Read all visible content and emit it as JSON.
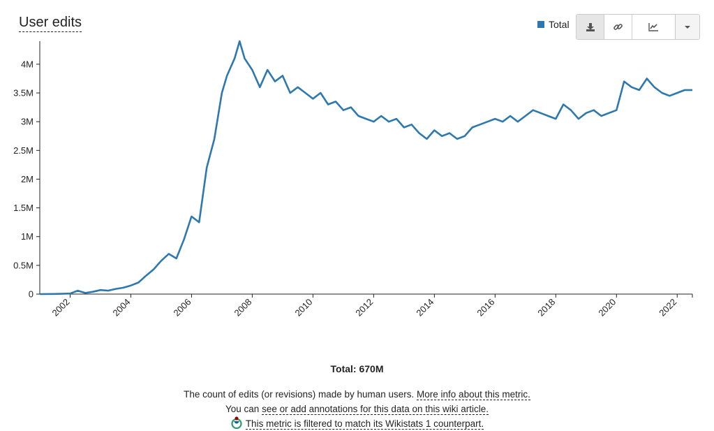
{
  "title": "User edits",
  "legend": {
    "label": "Total",
    "color": "#2E78B0"
  },
  "toolbar": {
    "download_icon": "download-icon",
    "link_icon": "link-icon",
    "chart_icon": "line-chart-icon",
    "menu_icon": "caret-down-icon"
  },
  "summary": {
    "total": "Total: 670M"
  },
  "description": {
    "line1_text": "The count of edits (or revisions) made by human users. ",
    "line1_link": "More info about this metric.",
    "line2_text": "You can ",
    "line2_link": "see or add annotations for this data on this wiki article.",
    "line3_link": "This metric is filtered to match its Wikistats 1 counterpart."
  },
  "chart_data": {
    "type": "line",
    "title": "User edits",
    "xlabel": "",
    "ylabel": "",
    "x_ticks": [
      "2002",
      "2004",
      "2006",
      "2008",
      "2010",
      "2012",
      "2014",
      "2016",
      "2018",
      "2020",
      "2022"
    ],
    "y_ticks": [
      "0",
      "0.5M",
      "1M",
      "1.5M",
      "2M",
      "2.5M",
      "3M",
      "3.5M",
      "4M"
    ],
    "ylim": [
      0,
      4400000
    ],
    "xlim": [
      "2001-01",
      "2022-07"
    ],
    "grid": false,
    "legend_position": "top-right",
    "series": [
      {
        "name": "Total",
        "color": "#2E78B0",
        "points": [
          [
            "2001-01",
            0
          ],
          [
            "2001-07",
            2000
          ],
          [
            "2002-01",
            10000
          ],
          [
            "2002-04",
            60000
          ],
          [
            "2002-07",
            20000
          ],
          [
            "2002-10",
            40000
          ],
          [
            "2003-01",
            70000
          ],
          [
            "2003-04",
            60000
          ],
          [
            "2003-07",
            90000
          ],
          [
            "2003-10",
            110000
          ],
          [
            "2004-01",
            150000
          ],
          [
            "2004-04",
            200000
          ],
          [
            "2004-07",
            320000
          ],
          [
            "2004-10",
            430000
          ],
          [
            "2005-01",
            580000
          ],
          [
            "2005-04",
            700000
          ],
          [
            "2005-07",
            620000
          ],
          [
            "2005-10",
            950000
          ],
          [
            "2006-01",
            1350000
          ],
          [
            "2006-04",
            1250000
          ],
          [
            "2006-07",
            2200000
          ],
          [
            "2006-10",
            2700000
          ],
          [
            "2007-01",
            3500000
          ],
          [
            "2007-03",
            3800000
          ],
          [
            "2007-06",
            4100000
          ],
          [
            "2007-08",
            4400000
          ],
          [
            "2007-10",
            4100000
          ],
          [
            "2008-01",
            3900000
          ],
          [
            "2008-04",
            3600000
          ],
          [
            "2008-07",
            3900000
          ],
          [
            "2008-10",
            3700000
          ],
          [
            "2009-01",
            3800000
          ],
          [
            "2009-04",
            3500000
          ],
          [
            "2009-07",
            3600000
          ],
          [
            "2009-10",
            3500000
          ],
          [
            "2010-01",
            3400000
          ],
          [
            "2010-04",
            3500000
          ],
          [
            "2010-07",
            3300000
          ],
          [
            "2010-10",
            3350000
          ],
          [
            "2011-01",
            3200000
          ],
          [
            "2011-04",
            3250000
          ],
          [
            "2011-07",
            3100000
          ],
          [
            "2011-10",
            3050000
          ],
          [
            "2012-01",
            3000000
          ],
          [
            "2012-04",
            3100000
          ],
          [
            "2012-07",
            3000000
          ],
          [
            "2012-10",
            3050000
          ],
          [
            "2013-01",
            2900000
          ],
          [
            "2013-04",
            2950000
          ],
          [
            "2013-07",
            2800000
          ],
          [
            "2013-10",
            2700000
          ],
          [
            "2014-01",
            2850000
          ],
          [
            "2014-04",
            2750000
          ],
          [
            "2014-07",
            2800000
          ],
          [
            "2014-10",
            2700000
          ],
          [
            "2015-01",
            2750000
          ],
          [
            "2015-04",
            2900000
          ],
          [
            "2015-07",
            2950000
          ],
          [
            "2015-10",
            3000000
          ],
          [
            "2016-01",
            3050000
          ],
          [
            "2016-04",
            3000000
          ],
          [
            "2016-07",
            3100000
          ],
          [
            "2016-10",
            3000000
          ],
          [
            "2017-01",
            3100000
          ],
          [
            "2017-04",
            3200000
          ],
          [
            "2017-07",
            3150000
          ],
          [
            "2017-10",
            3100000
          ],
          [
            "2018-01",
            3050000
          ],
          [
            "2018-04",
            3300000
          ],
          [
            "2018-07",
            3200000
          ],
          [
            "2018-10",
            3050000
          ],
          [
            "2019-01",
            3150000
          ],
          [
            "2019-04",
            3200000
          ],
          [
            "2019-07",
            3100000
          ],
          [
            "2019-10",
            3150000
          ],
          [
            "2020-01",
            3200000
          ],
          [
            "2020-04",
            3700000
          ],
          [
            "2020-07",
            3600000
          ],
          [
            "2020-10",
            3550000
          ],
          [
            "2021-01",
            3750000
          ],
          [
            "2021-04",
            3600000
          ],
          [
            "2021-07",
            3500000
          ],
          [
            "2021-10",
            3450000
          ],
          [
            "2022-01",
            3500000
          ],
          [
            "2022-04",
            3550000
          ],
          [
            "2022-07",
            3550000
          ]
        ]
      }
    ]
  }
}
